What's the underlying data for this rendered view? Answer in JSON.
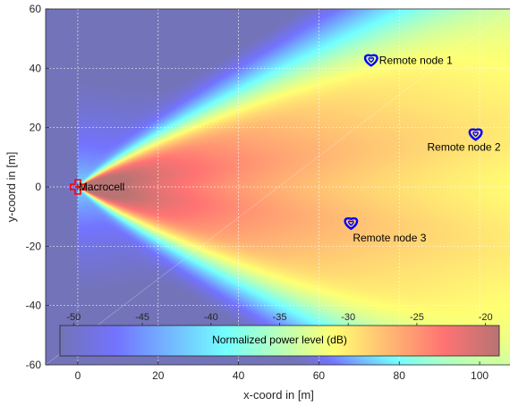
{
  "chart_data": {
    "type": "heatmap",
    "title": "",
    "xlabel": "x-coord in [m]",
    "ylabel": "y-coord in [m]",
    "xlim": [
      -8,
      108
    ],
    "ylim": [
      -60,
      60
    ],
    "xticks": [
      0,
      20,
      40,
      60,
      80,
      100
    ],
    "yticks": [
      -60,
      -40,
      -20,
      0,
      20,
      40,
      60
    ],
    "grid": true,
    "field": {
      "description_source": "macrocell",
      "beams_deg": [
        -26,
        -10,
        10,
        26
      ],
      "floor_db": -50,
      "peak_db": -20
    },
    "points": [
      {
        "label": "Macrocell",
        "x": 0,
        "y": 0,
        "marker": "plus",
        "color": "#ff0000"
      },
      {
        "label": "Remote node 1",
        "x": 73,
        "y": 43,
        "marker": "heart",
        "color": "#0000ff"
      },
      {
        "label": "Remote node 2",
        "x": 99,
        "y": 18,
        "marker": "heart",
        "color": "#0000ff"
      },
      {
        "label": "Remote node 3",
        "x": 68,
        "y": -12,
        "marker": "heart",
        "color": "#0000ff"
      }
    ],
    "colorbar": {
      "label": "Normalized power level (dB)",
      "ticks": [
        -50,
        -45,
        -40,
        -35,
        -30,
        -25,
        -20
      ],
      "range": [
        -51,
        -19
      ],
      "colormap": "jet"
    }
  }
}
